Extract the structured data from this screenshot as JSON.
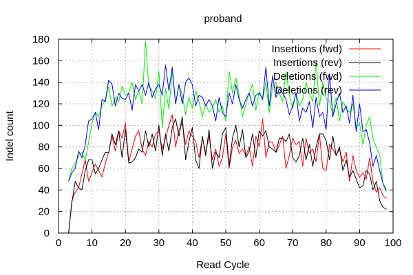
{
  "chart_data": {
    "type": "line",
    "title": "proband",
    "xlabel": "Read Cycle",
    "ylabel": "Indel count",
    "xlim": [
      0,
      100
    ],
    "ylim": [
      0,
      180
    ],
    "xticks": [
      0,
      10,
      20,
      30,
      40,
      50,
      60,
      70,
      80,
      90,
      100
    ],
    "yticks": [
      0,
      20,
      40,
      60,
      80,
      100,
      120,
      140,
      160,
      180
    ],
    "grid": true,
    "legend_position": "top-right",
    "x": [
      3,
      4,
      5,
      6,
      7,
      8,
      9,
      10,
      11,
      12,
      13,
      14,
      15,
      16,
      17,
      18,
      19,
      20,
      21,
      22,
      23,
      24,
      25,
      26,
      27,
      28,
      29,
      30,
      31,
      32,
      33,
      34,
      35,
      36,
      37,
      38,
      39,
      40,
      41,
      42,
      43,
      44,
      45,
      46,
      47,
      48,
      49,
      50,
      51,
      52,
      53,
      54,
      55,
      56,
      57,
      58,
      59,
      60,
      61,
      62,
      63,
      64,
      65,
      66,
      67,
      68,
      69,
      70,
      71,
      72,
      73,
      74,
      75,
      76,
      77,
      78,
      79,
      80,
      81,
      82,
      83,
      84,
      85,
      86,
      87,
      88,
      89,
      90,
      91,
      92,
      93,
      94,
      95,
      96,
      97,
      98
    ],
    "series": [
      {
        "name": "Insertions (fwd)",
        "color": "#ff0000",
        "values": [
          0,
          30,
          38,
          42,
          55,
          68,
          48,
          56,
          64,
          58,
          52,
          65,
          75,
          90,
          76,
          95,
          88,
          102,
          66,
          78,
          90,
          95,
          78,
          72,
          85,
          80,
          92,
          95,
          78,
          88,
          100,
          110,
          80,
          96,
          102,
          82,
          95,
          90,
          85,
          70,
          88,
          75,
          90,
          68,
          78,
          62,
          70,
          92,
          60,
          80,
          86,
          74,
          78,
          72,
          80,
          62,
          90,
          80,
          106,
          70,
          85,
          84,
          75,
          82,
          90,
          60,
          72,
          88,
          82,
          85,
          62,
          88,
          74,
          78,
          66,
          92,
          60,
          58,
          82,
          78,
          72,
          78,
          66,
          75,
          48,
          72,
          58,
          52,
          56,
          50,
          70,
          48,
          38,
          42,
          35,
          32
        ]
      },
      {
        "name": "Insertions (rev)",
        "color": "#000000",
        "values": [
          0,
          28,
          48,
          42,
          40,
          58,
          68,
          68,
          55,
          60,
          68,
          75,
          75,
          92,
          82,
          95,
          70,
          96,
          65,
          66,
          70,
          78,
          75,
          95,
          80,
          92,
          76,
          100,
          72,
          92,
          76,
          98,
          106,
          90,
          108,
          68,
          85,
          98,
          68,
          60,
          90,
          72,
          96,
          60,
          75,
          70,
          92,
          98,
          62,
          88,
          100,
          80,
          96,
          70,
          76,
          92,
          70,
          95,
          90,
          95,
          80,
          78,
          75,
          88,
          88,
          85,
          92,
          70,
          66,
          72,
          88,
          68,
          82,
          62,
          80,
          92,
          92,
          86,
          68,
          90,
          72,
          80,
          58,
          68,
          52,
          58,
          50,
          42,
          44,
          58,
          55,
          40,
          48,
          30,
          24,
          22
        ]
      },
      {
        "name": "Deletions (fwd)",
        "color": "#00ee00",
        "values": [
          48,
          60,
          64,
          72,
          75,
          68,
          84,
          102,
          112,
          108,
          118,
          124,
          136,
          118,
          126,
          122,
          136,
          128,
          130,
          140,
          124,
          132,
          120,
          178,
          136,
          132,
          125,
          150,
          98,
          134,
          115,
          150,
          120,
          138,
          128,
          110,
          126,
          116,
          132,
          122,
          108,
          120,
          112,
          116,
          124,
          112,
          118,
          104,
          150,
          130,
          144,
          128,
          108,
          120,
          130,
          138,
          114,
          132,
          124,
          140,
          112,
          136,
          140,
          130,
          122,
          150,
          128,
          116,
          130,
          118,
          124,
          140,
          130,
          122,
          160,
          118,
          140,
          125,
          122,
          110,
          126,
          104,
          122,
          116,
          112,
          120,
          98,
          102,
          82,
          100,
          108,
          88,
          80,
          72,
          46,
          38
        ]
      },
      {
        "name": "Deletions (rev)",
        "color": "#0000ff",
        "values": [
          48,
          56,
          60,
          76,
          70,
          82,
          104,
          106,
          112,
          96,
          124,
          122,
          142,
          138,
          118,
          130,
          125,
          124,
          130,
          114,
          138,
          132,
          138,
          128,
          140,
          126,
          134,
          138,
          128,
          156,
          132,
          154,
          120,
          138,
          120,
          140,
          144,
          138,
          118,
          128,
          126,
          118,
          124,
          118,
          104,
          126,
          112,
          108,
          130,
          120,
          138,
          124,
          116,
          124,
          130,
          118,
          128,
          130,
          124,
          154,
          118,
          146,
          126,
          134,
          130,
          124,
          110,
          118,
          130,
          104,
          116,
          112,
          122,
          98,
          126,
          108,
          112,
          96,
          148,
          108,
          120,
          130,
          112,
          118,
          102,
          128,
          94,
          120,
          94,
          96,
          84,
          62,
          72,
          58,
          46,
          40
        ]
      }
    ]
  }
}
